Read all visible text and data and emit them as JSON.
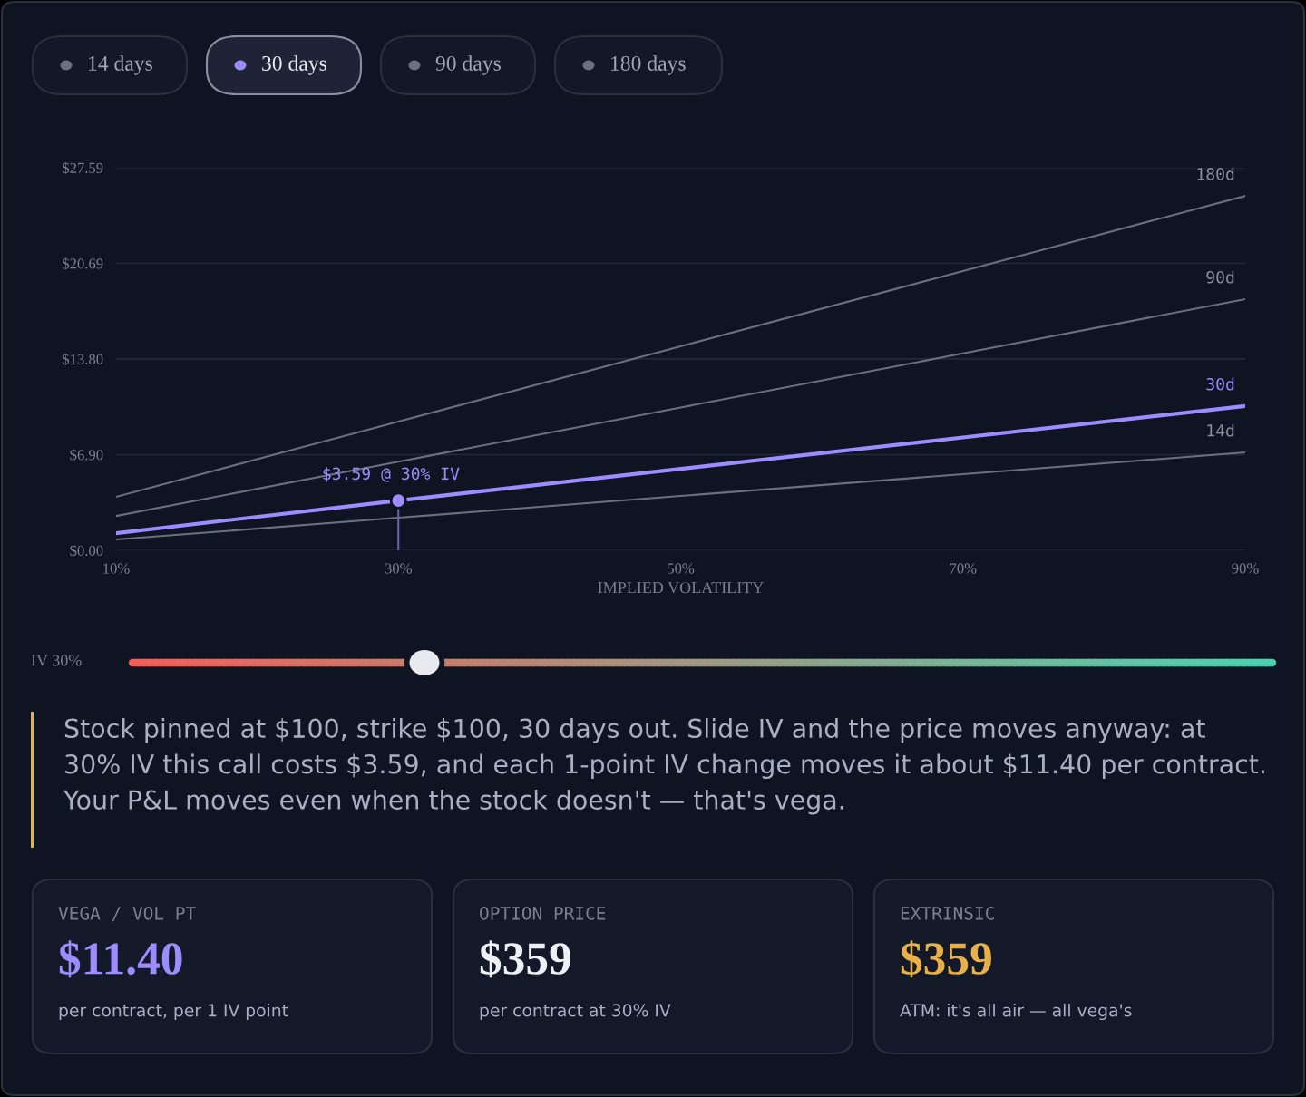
{
  "chart_data": {
    "type": "line",
    "xlabel": "IMPLIED VOLATILITY",
    "x": [
      10,
      30,
      50,
      70,
      90
    ],
    "series": [
      {
        "name": "180d",
        "color": "#6b7080",
        "values": [
          3.86,
          9.29,
          14.71,
          20.14,
          25.56
        ]
      },
      {
        "name": "90d",
        "color": "#6b7080",
        "values": [
          2.48,
          6.39,
          10.3,
          14.2,
          18.11
        ]
      },
      {
        "name": "30d",
        "color": "#9d8cff",
        "values": [
          1.24,
          3.59,
          5.88,
          8.14,
          10.4
        ]
      },
      {
        "name": "14d",
        "color": "#6b7080",
        "values": [
          0.78,
          2.35,
          3.92,
          5.49,
          7.06
        ]
      }
    ],
    "xlim": [
      10,
      90
    ],
    "xticks": [
      {
        "value": 10,
        "label": "10%"
      },
      {
        "value": 30,
        "label": "30%"
      },
      {
        "value": 50,
        "label": "50%"
      },
      {
        "value": 70,
        "label": "70%"
      },
      {
        "value": 90,
        "label": "90%"
      }
    ],
    "ylim": [
      0,
      27.59
    ],
    "yticks": [
      {
        "value": 0,
        "label": "$0.00"
      },
      {
        "value": 6.9,
        "label": "$6.90"
      },
      {
        "value": 13.8,
        "label": "$13.80"
      },
      {
        "value": 20.69,
        "label": "$20.69"
      },
      {
        "value": 27.59,
        "label": "$27.59"
      }
    ],
    "grid": "y",
    "legend": false,
    "marker": "none",
    "line_style": "solid",
    "annotations": [
      {
        "text": "$3.59 @ 30% IV",
        "x": 30,
        "y": 3.59
      },
      "14 days",
      "30 days",
      "90 days",
      "180 days",
      "IV 30%",
      "Stock pinned at $100, strike $100, 30 days out. Slide IV and the price moves anyway: at 30% IV this call costs $3.59, and each 1-point IV change moves it about $11.40 per contract. Your P&L moves even when the stock doesn't — that's vega.",
      "VEGA / VOL PT",
      "$11.40",
      "per contract, per 1 IV point",
      "OPTION PRICE",
      "$359",
      "per contract at 30% IV",
      "EXTRINSIC",
      "$359",
      "ATM: it's all air — all vega's"
    ]
  }
}
